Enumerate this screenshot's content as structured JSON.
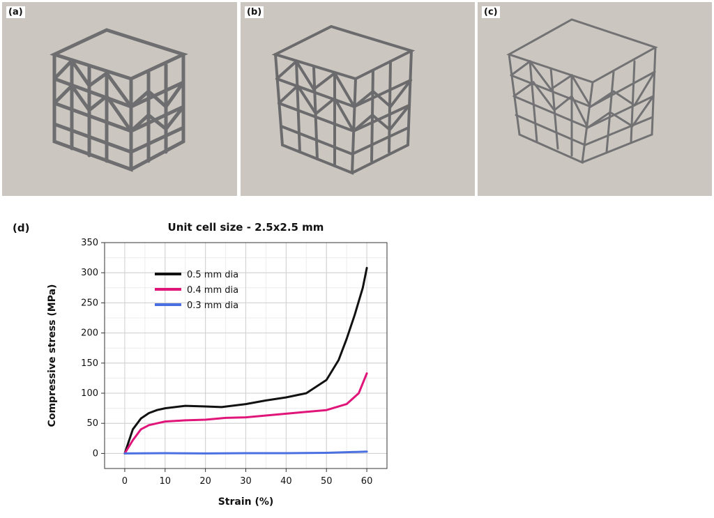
{
  "panels": {
    "a": "(a)",
    "b": "(b)",
    "c": "(c)",
    "d": "(d)"
  },
  "colors": {
    "photo_background": "#c9c4bd",
    "lattice": "#6e6e70"
  },
  "chart_data": {
    "type": "line",
    "title": "Unit cell size - 2.5x2.5 mm",
    "xlabel": "Strain (%)",
    "ylabel": "Compressive stress (MPa)",
    "xlim": [
      -5,
      65
    ],
    "ylim": [
      -25,
      350
    ],
    "xticks": [
      0,
      10,
      20,
      30,
      40,
      50,
      60
    ],
    "yticks": [
      0,
      50,
      100,
      150,
      200,
      250,
      300,
      350
    ],
    "grid": true,
    "legend_position": "top-left",
    "series": [
      {
        "name": "0.5 mm dia",
        "color": "#111111",
        "x": [
          0,
          2,
          4,
          6,
          8,
          10,
          15,
          20,
          24,
          30,
          35,
          40,
          45,
          50,
          53,
          55,
          57,
          59,
          60
        ],
        "y": [
          0,
          40,
          58,
          67,
          72,
          75,
          79,
          78,
          77,
          82,
          88,
          93,
          100,
          122,
          155,
          190,
          230,
          275,
          308
        ]
      },
      {
        "name": "0.4 mm dia",
        "color": "#e0157a",
        "x": [
          0,
          2,
          4,
          6,
          8,
          10,
          15,
          20,
          25,
          30,
          35,
          40,
          45,
          50,
          55,
          58,
          60
        ],
        "y": [
          0,
          22,
          40,
          47,
          50,
          53,
          55,
          56,
          59,
          60,
          63,
          66,
          69,
          72,
          82,
          100,
          133
        ]
      },
      {
        "name": "0.3 mm dia",
        "color": "#4a6fe0",
        "x": [
          0,
          10,
          20,
          30,
          40,
          50,
          60
        ],
        "y": [
          0,
          0.5,
          0,
          0.5,
          0.5,
          1,
          3
        ]
      }
    ]
  }
}
